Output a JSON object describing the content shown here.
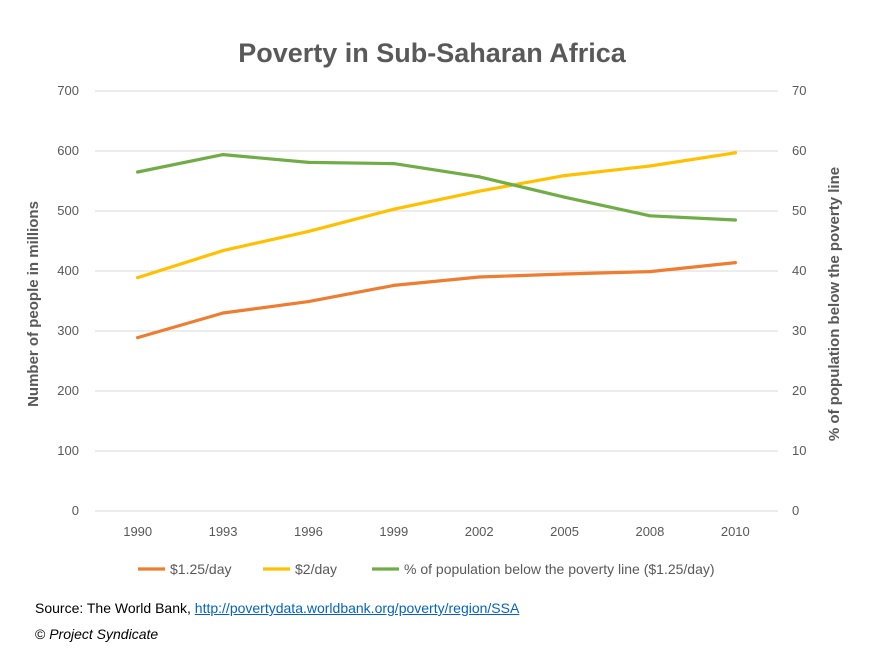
{
  "chart_data": {
    "type": "line",
    "title": "Poverty in Sub-Saharan Africa",
    "categories": [
      "1990",
      "1993",
      "1996",
      "1999",
      "2002",
      "2005",
      "2008",
      "2010"
    ],
    "ylabel": "Number of people in millions",
    "ylim": [
      0,
      700
    ],
    "yticks": [
      "0",
      "100",
      "200",
      "300",
      "400",
      "500",
      "600",
      "700"
    ],
    "y2label": "% of population below the poverty line",
    "y2lim": [
      0,
      70
    ],
    "y2ticks": [
      "0",
      "10",
      "20",
      "30",
      "40",
      "50",
      "60",
      "70"
    ],
    "grid": true,
    "legend_position": "bottom",
    "series": [
      {
        "name": "$1.25/day",
        "axis": "left",
        "color": "#ED7D31",
        "values": [
          289,
          330,
          349,
          376,
          390,
          395,
          399,
          414
        ]
      },
      {
        "name": "$2/day",
        "axis": "left",
        "color": "#FFC000",
        "values": [
          389,
          434,
          466,
          503,
          533,
          559,
          575,
          597
        ]
      },
      {
        "name": "% of population below the poverty line ($1.25/day)",
        "axis": "right",
        "color": "#70AD47",
        "values": [
          56.5,
          59.4,
          58.1,
          57.9,
          55.7,
          52.3,
          49.2,
          48.5
        ]
      }
    ]
  },
  "footer": {
    "source_label": "Source: The World Bank,",
    "source_link": "http://povertydata.worldbank.org/poverty/region/SSA",
    "copyright_symbol": "©",
    "copyright_text": "Project Syndicate"
  }
}
